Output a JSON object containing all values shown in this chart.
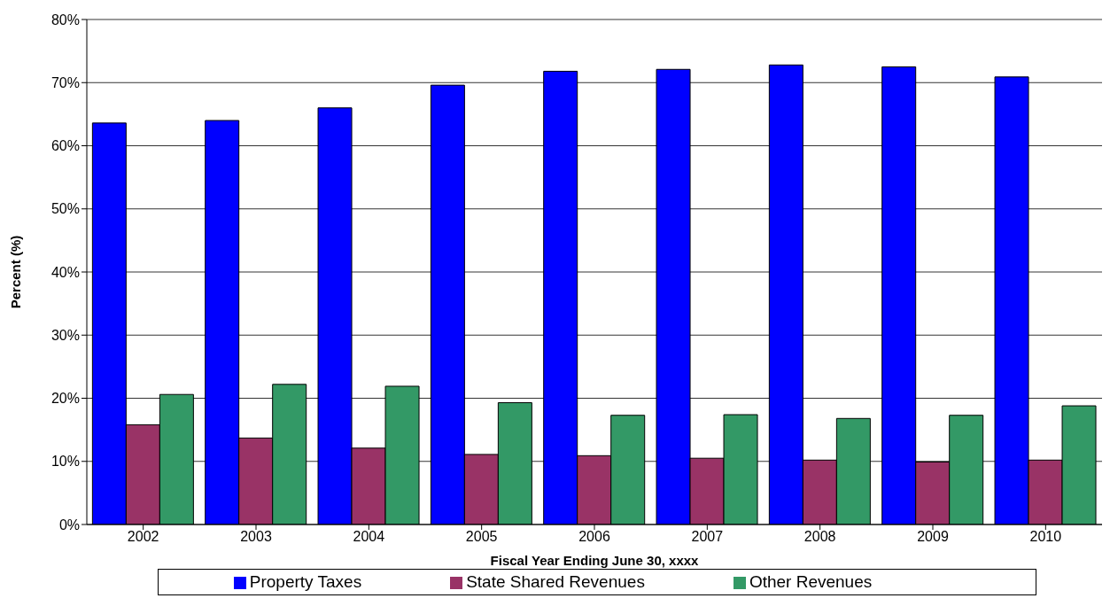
{
  "chart_data": {
    "type": "bar",
    "xlabel": "Fiscal Year Ending June 30, xxxx",
    "ylabel": "Percent (%)",
    "categories": [
      "2002",
      "2003",
      "2004",
      "2005",
      "2006",
      "2007",
      "2008",
      "2009",
      "2010"
    ],
    "series": [
      {
        "name": "Property Taxes",
        "color": "#0000ff",
        "values": [
          63.6,
          64.0,
          66.0,
          69.6,
          71.8,
          72.1,
          72.8,
          72.5,
          70.9
        ]
      },
      {
        "name": "State Shared Revenues",
        "color": "#993366",
        "values": [
          15.8,
          13.7,
          12.1,
          11.1,
          10.9,
          10.5,
          10.2,
          9.9,
          10.2
        ]
      },
      {
        "name": "Other Revenues",
        "color": "#339966",
        "values": [
          20.6,
          22.2,
          21.9,
          19.3,
          17.3,
          17.4,
          16.8,
          17.3,
          18.8
        ]
      }
    ],
    "ylim": [
      0,
      80
    ],
    "yticks": [
      {
        "value": 0,
        "label": "0%"
      },
      {
        "value": 10,
        "label": "10%"
      },
      {
        "value": 20,
        "label": "20%"
      },
      {
        "value": 30,
        "label": "30%"
      },
      {
        "value": 40,
        "label": "40%"
      },
      {
        "value": 50,
        "label": "50%"
      },
      {
        "value": 60,
        "label": "60%"
      },
      {
        "value": 70,
        "label": "70%"
      },
      {
        "value": 80,
        "label": "80%"
      }
    ],
    "grid": "y",
    "legend": "bottom"
  }
}
